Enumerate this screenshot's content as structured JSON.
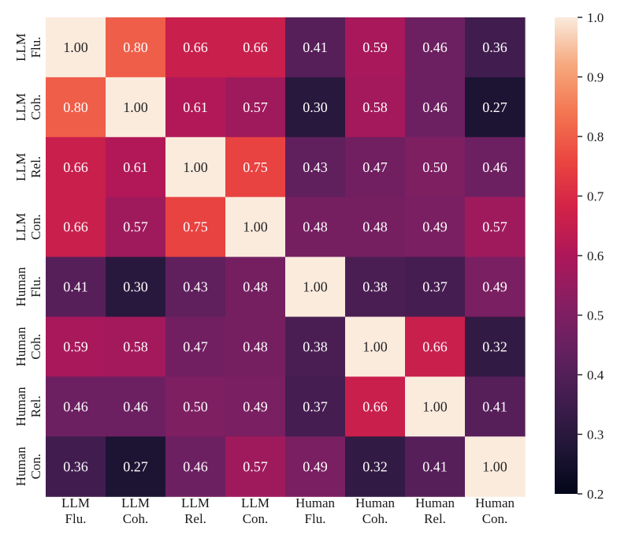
{
  "chart_data": {
    "type": "heatmap",
    "title": "",
    "row_labels": [
      [
        "LLM",
        "Flu."
      ],
      [
        "LLM",
        "Coh."
      ],
      [
        "LLM",
        "Rel."
      ],
      [
        "LLM",
        "Con."
      ],
      [
        "Human",
        "Flu."
      ],
      [
        "Human",
        "Coh."
      ],
      [
        "Human",
        "Rel."
      ],
      [
        "Human",
        "Con."
      ]
    ],
    "col_labels": [
      [
        "LLM",
        "Flu."
      ],
      [
        "LLM",
        "Coh."
      ],
      [
        "LLM",
        "Rel."
      ],
      [
        "LLM",
        "Con."
      ],
      [
        "Human",
        "Flu."
      ],
      [
        "Human",
        "Coh."
      ],
      [
        "Human",
        "Rel."
      ],
      [
        "Human",
        "Con."
      ]
    ],
    "values": [
      [
        1.0,
        0.8,
        0.66,
        0.66,
        0.41,
        0.59,
        0.46,
        0.36
      ],
      [
        0.8,
        1.0,
        0.61,
        0.57,
        0.3,
        0.58,
        0.46,
        0.27
      ],
      [
        0.66,
        0.61,
        1.0,
        0.75,
        0.43,
        0.47,
        0.5,
        0.46
      ],
      [
        0.66,
        0.57,
        0.75,
        1.0,
        0.48,
        0.48,
        0.49,
        0.57
      ],
      [
        0.41,
        0.3,
        0.43,
        0.48,
        1.0,
        0.38,
        0.37,
        0.49
      ],
      [
        0.59,
        0.58,
        0.47,
        0.48,
        0.38,
        1.0,
        0.66,
        0.32
      ],
      [
        0.46,
        0.46,
        0.5,
        0.49,
        0.37,
        0.66,
        1.0,
        0.41
      ],
      [
        0.36,
        0.27,
        0.46,
        0.57,
        0.49,
        0.32,
        0.41,
        1.0
      ]
    ],
    "value_format": "2 decimals",
    "colormap": "rocket",
    "colorbar": {
      "range": [
        0.2,
        1.0
      ],
      "ticks": [
        "0.2",
        "0.3",
        "0.4",
        "0.5",
        "0.6",
        "0.7",
        "0.8",
        "0.9",
        "1.0"
      ]
    }
  }
}
